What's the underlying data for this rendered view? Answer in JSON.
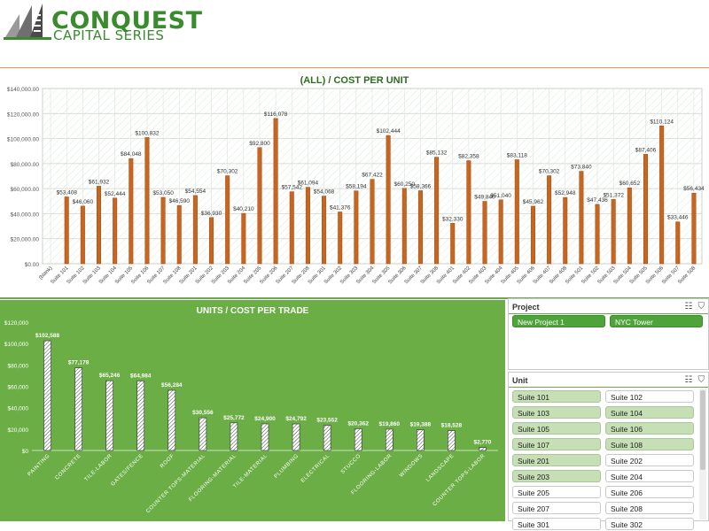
{
  "brand": {
    "line1": "CONQUEST",
    "line2": "CAPITAL SERIES",
    "color": "#3a8a2e"
  },
  "colors": {
    "accent_orange": "#e39b5b",
    "bar_orange": "#c8661f",
    "panel_green": "#6aae45",
    "selected_green": "#c6dfb4",
    "project_green": "#4ea43a"
  },
  "chart_data": [
    {
      "type": "bar",
      "title": "(ALL) / COST PER UNIT",
      "ylim": [
        0,
        140000
      ],
      "yticks": [
        "$0.00",
        "$20,000.00",
        "$40,000.00",
        "$60,000.00",
        "$80,000.00",
        "$100,000.00",
        "$120,000.00",
        "$140,000.00"
      ],
      "grid": true,
      "categories": [
        "(blank)",
        "Suite 101",
        "Suite 102",
        "Suite 103",
        "Suite 104",
        "Suite 105",
        "Suite 106",
        "Suite 107",
        "Suite 108",
        "Suite 201",
        "Suite 202",
        "Suite 203",
        "Suite 204",
        "Suite 205",
        "Suite 206",
        "Suite 207",
        "Suite 208",
        "Suite 301",
        "Suite 302",
        "Suite 303",
        "Suite 304",
        "Suite 305",
        "Suite 306",
        "Suite 307",
        "Suite 308",
        "Suite 401",
        "Suite 402",
        "Suite 403",
        "Suite 404",
        "Suite 405",
        "Suite 406",
        "Suite 407",
        "Suite 408",
        "Suite 501",
        "Suite 502",
        "Suite 503",
        "Suite 504",
        "Suite 505",
        "Suite 506",
        "Suite 507",
        "Suite 508"
      ],
      "values": [
        0,
        53408,
        46060,
        61932,
        52444,
        84048,
        100832,
        53050,
        46590,
        54554,
        36930,
        70302,
        40210,
        92800,
        116078,
        57542,
        61094,
        54068,
        41376,
        58194,
        67422,
        102444,
        60250,
        58366,
        85132,
        32330,
        82358,
        49840,
        51040,
        83118,
        45962,
        70302,
        52948,
        73840,
        47436,
        51372,
        60652,
        87406,
        110124,
        33446,
        56434
      ],
      "labels": [
        "",
        "$53,408",
        "$46,060",
        "$61,932",
        "$52,444",
        "$84,048",
        "$100,832",
        "$53,050",
        "$46,590",
        "$54,554",
        "$36,930",
        "$70,302",
        "$40,210",
        "$92,800",
        "$116,078",
        "$57,542",
        "$61,094",
        "$54,068",
        "$41,376",
        "$58,194",
        "$67,422",
        "$102,444",
        "$60,250",
        "$58,366",
        "$85,132",
        "$32,330",
        "$82,358",
        "$49,840",
        "$51,040",
        "$83,118",
        "$45,962",
        "$70,302",
        "$52,948",
        "$73,840",
        "$47,436",
        "$51,372",
        "$60,652",
        "$87,406",
        "$110,124",
        "$33,446",
        "$56,434"
      ]
    },
    {
      "type": "bar",
      "title": "UNITS / COST PER TRADE",
      "ylim": [
        0,
        120000
      ],
      "yticks": [
        "$0",
        "$20,000",
        "$40,000",
        "$60,000",
        "$80,000",
        "$100,000",
        "$120,000"
      ],
      "grid": false,
      "categories": [
        "PAINTING",
        "CONCRETE",
        "TILE-LABOR",
        "GATES/FENCE",
        "ROOF",
        "COUNTER TOPS-MATERIAL",
        "FLOORING-MATERIAL",
        "TILE-MATERIAL",
        "PLUMBING",
        "ELECTRICAL",
        "STUCCO",
        "FLOORING-LABOR",
        "WINDOWS",
        "LANDSCAPE",
        "COUNTER TOPS-LABOR"
      ],
      "values": [
        102588,
        77178,
        65246,
        64984,
        56284,
        30556,
        25772,
        24900,
        24792,
        23552,
        20362,
        19860,
        19388,
        18528,
        2770
      ],
      "labels": [
        "$102,588",
        "$77,178",
        "$65,246",
        "$64,984",
        "$56,284",
        "$30,556",
        "$25,772",
        "$24,900",
        "$24,792",
        "$23,552",
        "$20,362",
        "$19,860",
        "$19,388",
        "$18,528",
        "$2,770"
      ]
    }
  ],
  "project_slicer": {
    "title": "Project",
    "items": [
      {
        "label": "New Project 1"
      },
      {
        "label": "NYC Tower"
      }
    ]
  },
  "unit_slicer": {
    "title": "Unit",
    "items": [
      {
        "label": "Suite 101",
        "selected": true
      },
      {
        "label": "Suite 102",
        "selected": false
      },
      {
        "label": "Suite 103",
        "selected": true
      },
      {
        "label": "Suite 104",
        "selected": true
      },
      {
        "label": "Suite 105",
        "selected": true
      },
      {
        "label": "Suite 106",
        "selected": true
      },
      {
        "label": "Suite 107",
        "selected": true
      },
      {
        "label": "Suite 108",
        "selected": true
      },
      {
        "label": "Suite 201",
        "selected": true
      },
      {
        "label": "Suite 202",
        "selected": false
      },
      {
        "label": "Suite 203",
        "selected": true
      },
      {
        "label": "Suite 204",
        "selected": false
      },
      {
        "label": "Suite 205",
        "selected": false
      },
      {
        "label": "Suite 206",
        "selected": false
      },
      {
        "label": "Suite 207",
        "selected": false
      },
      {
        "label": "Suite 208",
        "selected": false
      },
      {
        "label": "Suite 301",
        "selected": false
      },
      {
        "label": "Suite 302",
        "selected": false
      }
    ]
  },
  "icons": {
    "multiselect": "multiselect-icon",
    "clear_filter": "clear-filter-icon"
  }
}
